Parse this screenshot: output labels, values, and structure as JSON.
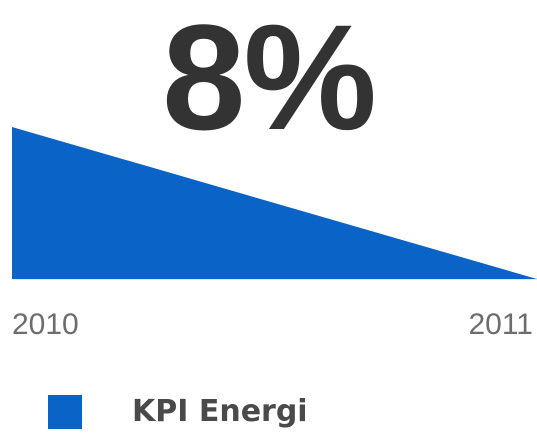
{
  "kpi": {
    "value_text": "8%"
  },
  "colors": {
    "series": "#0a64c8",
    "value_text": "#333333",
    "tick_text": "#6d6d6d",
    "baseline": "#cccccc"
  },
  "chart_data": {
    "type": "area",
    "categories": [
      "2010",
      "2011"
    ],
    "series": [
      {
        "name": "KPI Energi",
        "values": [
          1,
          0
        ]
      }
    ],
    "legend": "bottom-left",
    "grid": false
  }
}
